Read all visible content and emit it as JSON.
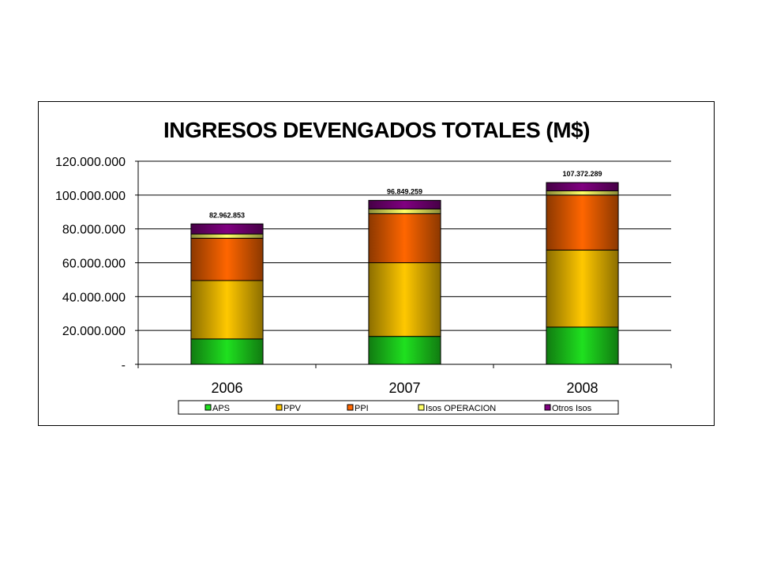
{
  "chart_data": {
    "type": "bar",
    "stacked": true,
    "title": "INGRESOS DEVENGADOS TOTALES (M$)",
    "xlabel": "",
    "ylabel": "",
    "categories": [
      "2006",
      "2007",
      "2008"
    ],
    "ylim": [
      0,
      120000000
    ],
    "yticks": [
      0,
      20000000,
      40000000,
      60000000,
      80000000,
      100000000,
      120000000
    ],
    "ytick_labels": [
      "-",
      "20.000.000",
      "40.000.000",
      "60.000.000",
      "80.000.000",
      "100.000.000",
      "120.000.000"
    ],
    "grid": true,
    "legend_position": "bottom",
    "series": [
      {
        "name": "APS",
        "color": "#1fe01f",
        "values": [
          15000000,
          16500000,
          22000000
        ]
      },
      {
        "name": "PPV",
        "color": "#ffc800",
        "values": [
          34500000,
          43500000,
          45500000
        ]
      },
      {
        "name": "PPI",
        "color": "#ff6600",
        "values": [
          25000000,
          29000000,
          32500000
        ]
      },
      {
        "name": "Isos OPERACION",
        "color": "#ffff66",
        "values": [
          2500000,
          2800000,
          2500000
        ]
      },
      {
        "name": "Otros Isos",
        "color": "#800080",
        "values": [
          5962853,
          5049259,
          4872289
        ]
      }
    ],
    "totals": [
      82962853,
      96849259,
      107372289
    ],
    "total_labels": [
      "82.962.853",
      "96.849.259",
      "107.372.289"
    ]
  }
}
